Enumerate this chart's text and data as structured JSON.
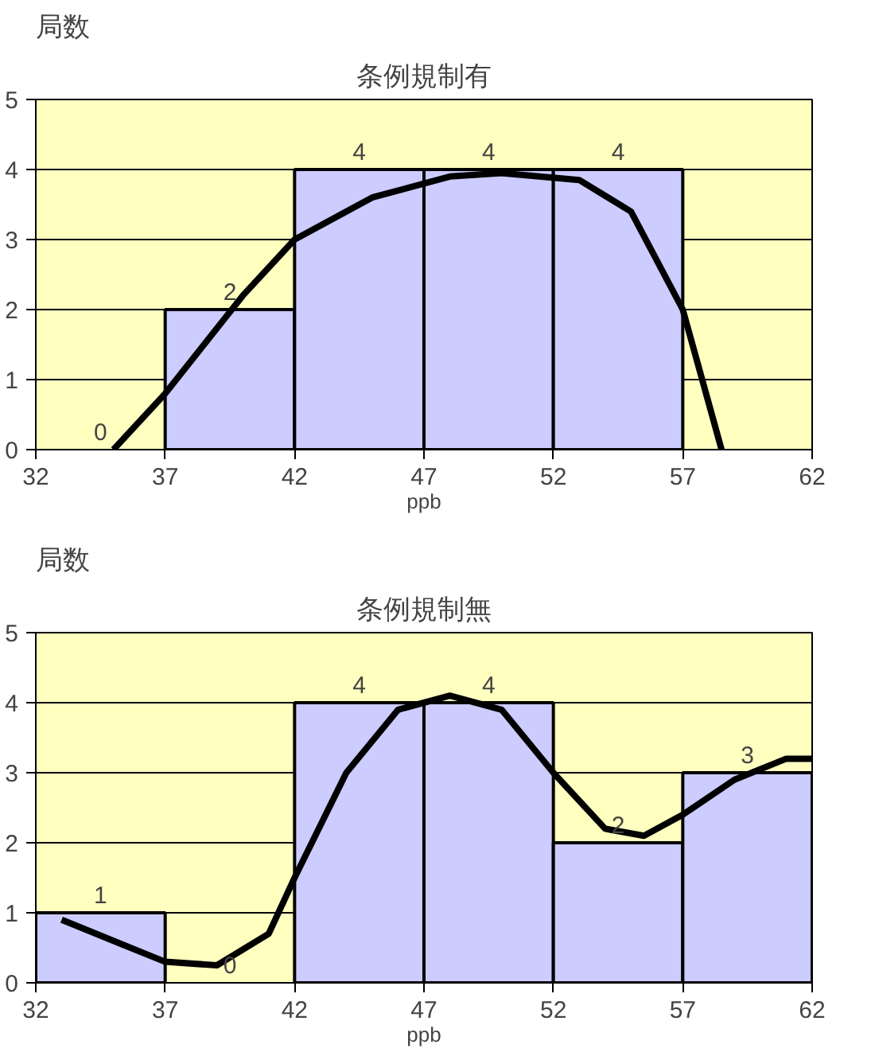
{
  "chart_data": [
    {
      "type": "histogram",
      "title": "条例規制有",
      "xlabel": "ppb",
      "ylabel": "局数",
      "bins": [
        32,
        37,
        42,
        47,
        52,
        57,
        62
      ],
      "values": [
        0,
        2,
        4,
        4,
        4,
        0
      ],
      "value_labels": [
        "0",
        "2",
        "4",
        "4",
        "4",
        null
      ],
      "color": "#ccccff",
      "xlim": [
        32,
        62
      ],
      "xticks": [
        32,
        37,
        42,
        47,
        52,
        57,
        62
      ],
      "ylim": [
        0,
        5
      ],
      "yticks": [
        0,
        1,
        2,
        3,
        4,
        5
      ],
      "grid": "y",
      "series": [
        {
          "type": "line",
          "color": "#000000",
          "x": [
            35,
            37,
            40,
            42,
            45,
            48,
            50,
            53,
            55,
            57,
            58.5
          ],
          "values": [
            0,
            0.8,
            2.2,
            3.0,
            3.6,
            3.9,
            3.95,
            3.85,
            3.4,
            2.0,
            0
          ]
        }
      ]
    },
    {
      "type": "histogram",
      "title": "条例規制無",
      "xlabel": "ppb",
      "ylabel": "局数",
      "bins": [
        32,
        37,
        42,
        47,
        52,
        57,
        62
      ],
      "values": [
        1,
        0,
        4,
        4,
        2,
        3
      ],
      "value_labels": [
        "1",
        "0",
        "4",
        "4",
        "2",
        "3"
      ],
      "color": "#ccccff",
      "xlim": [
        32,
        62
      ],
      "xticks": [
        32,
        37,
        42,
        47,
        52,
        57,
        62
      ],
      "ylim": [
        0,
        5
      ],
      "yticks": [
        0,
        1,
        2,
        3,
        4,
        5
      ],
      "grid": "y",
      "series": [
        {
          "type": "line",
          "color": "#000000",
          "x": [
            33,
            35,
            37,
            39,
            41,
            42,
            44,
            46,
            48,
            50,
            52,
            54,
            55.5,
            57,
            59,
            61,
            62
          ],
          "values": [
            0.9,
            0.6,
            0.3,
            0.25,
            0.7,
            1.5,
            3.0,
            3.9,
            4.1,
            3.9,
            3.0,
            2.2,
            2.1,
            2.4,
            2.9,
            3.2,
            3.2
          ]
        }
      ]
    }
  ]
}
